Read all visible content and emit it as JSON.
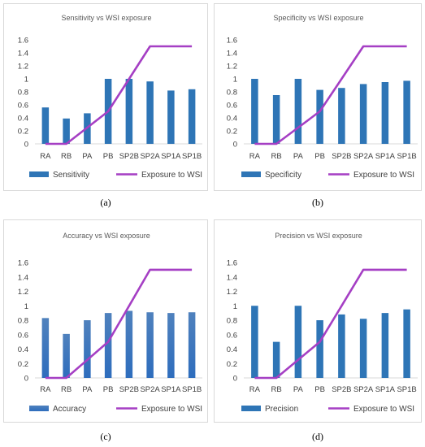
{
  "captions": [
    "(a)",
    "(b)",
    "(c)",
    "(d)"
  ],
  "chart_data": [
    {
      "type": "bar",
      "title": "Sensitivity vs WSI exposure",
      "categories": [
        "RA",
        "RB",
        "PA",
        "PB",
        "SP2B",
        "SP2A",
        "SP1A",
        "SP1B"
      ],
      "ylim": [
        0,
        1.6
      ],
      "yticks": [
        "0",
        "0.2",
        "0.4",
        "0.6",
        "0.8",
        "1",
        "1.2",
        "1.4",
        "1.6"
      ],
      "series": [
        {
          "name": "Sensitivity",
          "type": "bar",
          "color": "#2e75b6",
          "values": [
            0.56,
            0.39,
            0.47,
            1.0,
            1.0,
            0.96,
            0.82,
            0.84
          ]
        },
        {
          "name": "Exposure to WSI",
          "type": "line",
          "color": "#a53fc4",
          "values": [
            0,
            0,
            0.25,
            0.5,
            1.0,
            1.5,
            1.5,
            1.5
          ]
        }
      ],
      "legend": "bottom",
      "grid": false
    },
    {
      "type": "bar",
      "title": "Specificity vs WSI exposure",
      "categories": [
        "RA",
        "RB",
        "PA",
        "PB",
        "SP2B",
        "SP2A",
        "SP1A",
        "SP1B"
      ],
      "ylim": [
        0,
        1.6
      ],
      "yticks": [
        "0",
        "0.2",
        "0.4",
        "0.6",
        "0.8",
        "1",
        "1.2",
        "1.4",
        "1.6"
      ],
      "series": [
        {
          "name": "Specificity",
          "type": "bar",
          "color": "#2e75b6",
          "values": [
            1.0,
            0.75,
            1.0,
            0.83,
            0.86,
            0.92,
            0.95,
            0.97
          ]
        },
        {
          "name": "Exposure to WSI",
          "type": "line",
          "color": "#a53fc4",
          "values": [
            0,
            0,
            0.25,
            0.5,
            1.0,
            1.5,
            1.5,
            1.5
          ]
        }
      ],
      "legend": "bottom",
      "grid": false
    },
    {
      "type": "bar",
      "title": "Accuracy vs WSI exposure",
      "categories": [
        "RA",
        "RB",
        "PA",
        "PB",
        "SP2B",
        "SP2A",
        "SP1A",
        "SP1B"
      ],
      "ylim": [
        0,
        1.6
      ],
      "yticks": [
        "0",
        "0.2",
        "0.4",
        "0.6",
        "0.8",
        "1",
        "1.2",
        "1.4",
        "1.6"
      ],
      "series": [
        {
          "name": "Accuracy",
          "type": "bar",
          "color": "#3a7cc7",
          "values": [
            0.83,
            0.61,
            0.8,
            0.9,
            0.93,
            0.91,
            0.9,
            0.91
          ]
        },
        {
          "name": "Exposure to WSI",
          "type": "line",
          "color": "#a53fc4",
          "values": [
            0,
            0,
            0.25,
            0.5,
            1.0,
            1.5,
            1.5,
            1.5
          ]
        }
      ],
      "legend": "bottom",
      "grid": false
    },
    {
      "type": "bar",
      "title": "Precision vs WSI exposure",
      "categories": [
        "RA",
        "RB",
        "PA",
        "PB",
        "SP2B",
        "SP2A",
        "SP1A",
        "SP1B"
      ],
      "ylim": [
        0,
        1.6
      ],
      "yticks": [
        "0",
        "0.2",
        "0.4",
        "0.6",
        "0.8",
        "1",
        "1.2",
        "1.4",
        "1.6"
      ],
      "series": [
        {
          "name": "Precision",
          "type": "bar",
          "color": "#2e75b6",
          "values": [
            1.0,
            0.5,
            1.0,
            0.8,
            0.88,
            0.82,
            0.9,
            0.95
          ]
        },
        {
          "name": "Exposure to WSI",
          "type": "line",
          "color": "#a53fc4",
          "values": [
            0,
            0,
            0.25,
            0.5,
            1.0,
            1.5,
            1.5,
            1.5
          ]
        }
      ],
      "legend": "bottom",
      "grid": false
    }
  ]
}
